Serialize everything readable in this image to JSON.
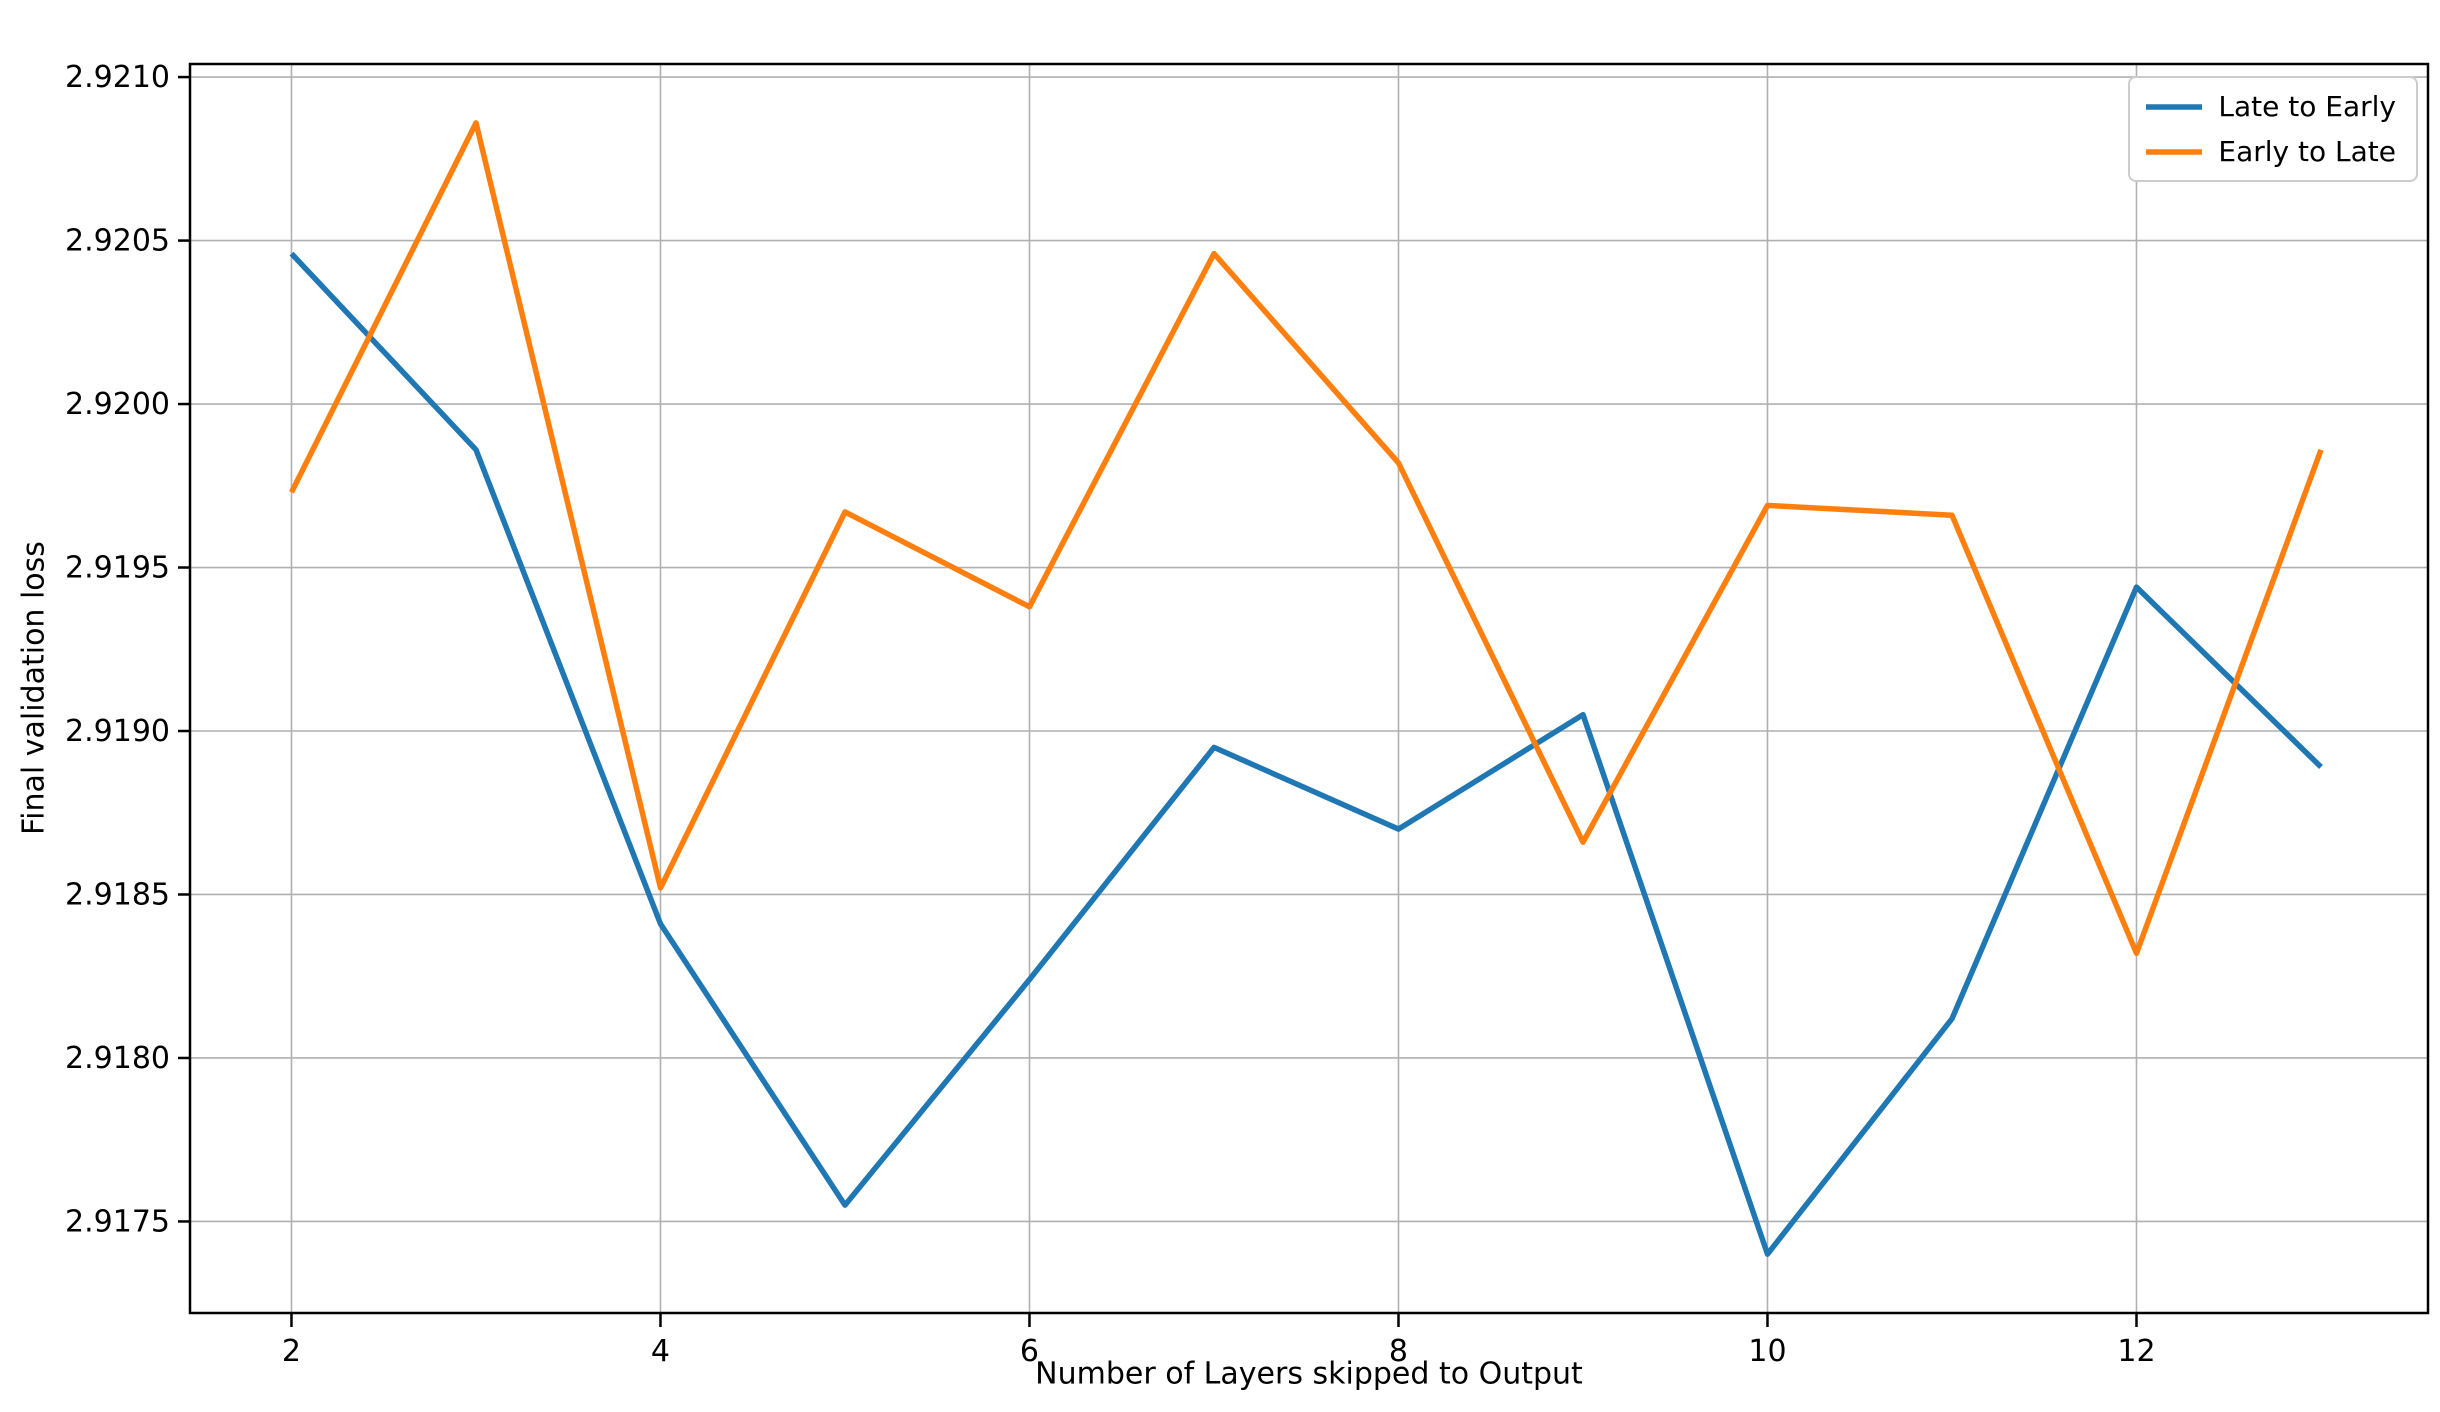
{
  "chart_data": {
    "type": "line",
    "title": "",
    "xlabel": "Number of Layers skipped to Output",
    "ylabel": "Final validation loss",
    "x": [
      2,
      3,
      4,
      5,
      6,
      7,
      8,
      9,
      10,
      11,
      12,
      13
    ],
    "series": [
      {
        "name": "Late to Early",
        "color": "#1f77b4",
        "values": [
          2.92046,
          2.91986,
          2.91841,
          2.91755,
          2.91824,
          2.91895,
          2.9187,
          2.91905,
          2.9174,
          2.91812,
          2.91944,
          2.91889
        ]
      },
      {
        "name": "Early to Late",
        "color": "#ff7f0e",
        "values": [
          2.91973,
          2.92086,
          2.91852,
          2.91967,
          2.91938,
          2.92046,
          2.91982,
          2.91866,
          2.91969,
          2.91966,
          2.91832,
          2.91986
        ]
      }
    ],
    "xticks": [
      2,
      4,
      6,
      8,
      10,
      12
    ],
    "yticks": [
      "2.9175",
      "2.9180",
      "2.9185",
      "2.9190",
      "2.9195",
      "2.9200",
      "2.9205",
      "2.9210"
    ],
    "xlim": [
      1.45,
      13.58
    ],
    "ylim": [
      2.91722,
      2.92104
    ],
    "grid": true,
    "legend_position": "upper right"
  },
  "colors": {
    "grid": "#b0b0b0",
    "frame": "#000000",
    "background": "#ffffff",
    "legend_border": "#cccccc",
    "text": "#000000"
  }
}
